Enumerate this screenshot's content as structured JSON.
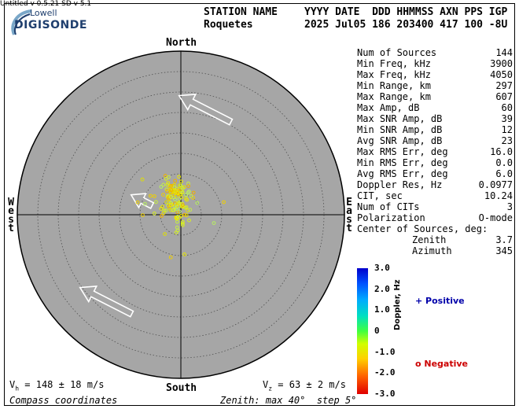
{
  "logo": {
    "top_text": "Lowell",
    "main_text": "DIGISONDE"
  },
  "header": {
    "station_label": "STATION NAME",
    "station_value": "Roquetes",
    "col_labels": "YYYY DATE  DDD HHMMSS AXN PPS IGP",
    "col_values": "2025 Jul05 186 203400 417 100 -8U"
  },
  "compass": {
    "north": "North",
    "south": "South",
    "west": "West",
    "east": "East"
  },
  "stats": [
    {
      "label": "Num of Sources",
      "value": "144"
    },
    {
      "label": "Min Freq, kHz",
      "value": "3900"
    },
    {
      "label": "Max Freq, kHz",
      "value": "4050"
    },
    {
      "label": "Min Range, km",
      "value": "297"
    },
    {
      "label": "Max Range, km",
      "value": "607"
    },
    {
      "label": "Max Amp, dB",
      "value": "60"
    },
    {
      "label": "Max SNR Amp, dB",
      "value": "39"
    },
    {
      "label": "Min SNR Amp, dB",
      "value": "12"
    },
    {
      "label": "Avg SNR Amp, dB",
      "value": "23"
    },
    {
      "label": "Max RMS Err, deg",
      "value": "16.0"
    },
    {
      "label": "Min RMS Err, deg",
      "value": "0.0"
    },
    {
      "label": "Avg RMS Err, deg",
      "value": "6.0"
    },
    {
      "label": "Doppler Res, Hz",
      "value": "0.0977"
    },
    {
      "label": "CIT, sec",
      "value": "10.24"
    },
    {
      "label": "Num of CITs",
      "value": "3"
    },
    {
      "label": "Polarization",
      "value": "O-mode"
    },
    {
      "label": "Center of Sources, deg:",
      "value": ""
    },
    {
      "label": "Zenith",
      "value": "3.7"
    },
    {
      "label": "Azimuth",
      "value": "345"
    }
  ],
  "colorbar": {
    "title": "Doppler, Hz",
    "ticks": [
      "3.0",
      "2.0",
      "1.0",
      "0",
      "-1.0",
      "-2.0",
      "-3.0"
    ],
    "positive_label": "+ Positive",
    "negative_label": "o Negative",
    "range": [
      -3.0,
      3.0
    ]
  },
  "footer": {
    "vh": "V  = 148 ± 18 m/s",
    "vz": "V  = 63 ± 2 m/s",
    "compass_coords": "Compass coordinates",
    "zenith_step": "Zenith: max 40°  step 5°",
    "version": "Untitled v 0.5.21   SD v 5.1"
  },
  "skymap": {
    "zenith_max_deg": 40,
    "zenith_step_deg": 5,
    "center_zenith_deg": 3.7,
    "center_azimuth_deg": 345,
    "drift_azimuth_deg": 300
  },
  "colors": {
    "disk": "#a6a6a6",
    "grid": "#505050",
    "arrow": "#ffffff"
  }
}
